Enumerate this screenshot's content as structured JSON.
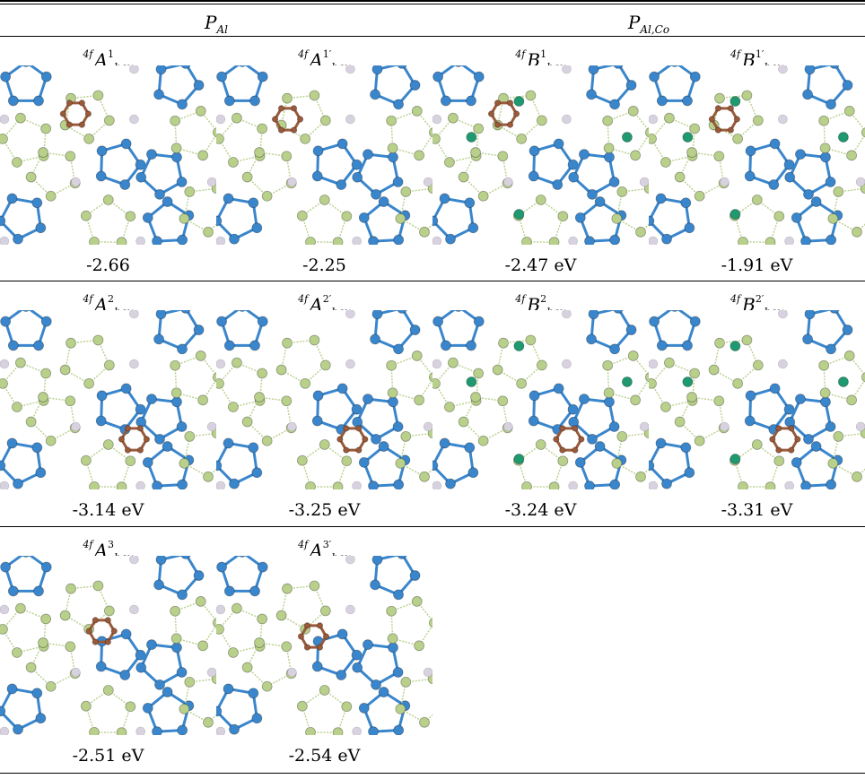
{
  "table": {
    "group_headers": [
      {
        "symbol": "P",
        "subscript": "Al"
      },
      {
        "symbol": "P",
        "subscript": "Al,Co"
      }
    ],
    "rows": [
      {
        "cells": [
          {
            "prefix": "4f",
            "letter": "A",
            "sup": "1",
            "sub": "hex",
            "energy": "-2.66",
            "ring": [
              0.35,
              0.27
            ],
            "cobalt": false
          },
          {
            "prefix": "4f",
            "letter": "A",
            "sup": "1′",
            "sub": "hex",
            "energy": "-2.25",
            "ring": [
              0.33,
              0.3
            ],
            "cobalt": false
          },
          {
            "prefix": "4f",
            "letter": "B",
            "sup": "1",
            "sub": "hex",
            "energy": "-2.47 eV",
            "ring": [
              0.33,
              0.27
            ],
            "cobalt": true
          },
          {
            "prefix": "4f",
            "letter": "B",
            "sup": "1′",
            "sub": "hex",
            "energy": "-1.91 eV",
            "ring": [
              0.35,
              0.3
            ],
            "cobalt": true
          }
        ]
      },
      {
        "cells": [
          {
            "prefix": "4f",
            "letter": "A",
            "sup": "2",
            "sub": "hex",
            "energy": "-3.14 eV",
            "ring": [
              0.62,
              0.72
            ],
            "cobalt": false
          },
          {
            "prefix": "4f",
            "letter": "A",
            "sup": "2′",
            "sub": "hex",
            "energy": "-3.25 eV",
            "ring": [
              0.63,
              0.72
            ],
            "cobalt": false
          },
          {
            "prefix": "4f",
            "letter": "B",
            "sup": "2",
            "sub": "hex",
            "energy": "-3.24 eV",
            "ring": [
              0.63,
              0.72
            ],
            "cobalt": true
          },
          {
            "prefix": "4f",
            "letter": "B",
            "sup": "2′",
            "sub": "hex",
            "energy": "-3.31 eV",
            "ring": [
              0.63,
              0.72
            ],
            "cobalt": true
          }
        ]
      },
      {
        "cells": [
          {
            "prefix": "4f",
            "letter": "A",
            "sup": "3",
            "sub": "hex",
            "energy": "-2.51 eV",
            "ring": [
              0.47,
              0.42
            ],
            "cobalt": false
          },
          {
            "prefix": "4f",
            "letter": "A",
            "sup": "3′",
            "sub": "hex",
            "energy": "-2.54 eV",
            "ring": [
              0.45,
              0.45
            ],
            "cobalt": false
          }
        ]
      }
    ]
  },
  "colors": {
    "al_blue": "#3a86cc",
    "p_green": "#b8d08a",
    "co_teal": "#1f9a70",
    "host_gray": "#d8d2e0",
    "ring_brown": "#9a5a3a"
  }
}
